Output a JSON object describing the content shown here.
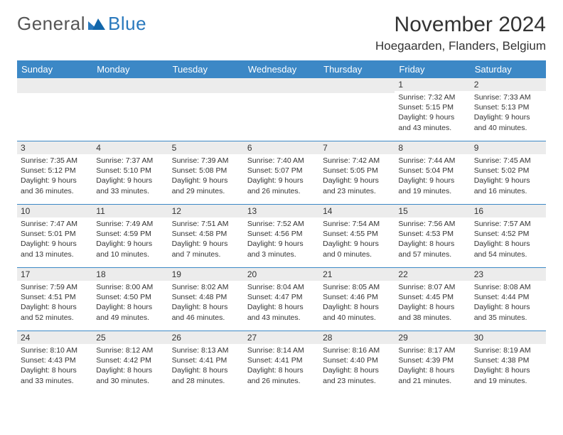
{
  "logo": {
    "word1": "General",
    "word2": "Blue"
  },
  "title": "November 2024",
  "location": "Hoegaarden, Flanders, Belgium",
  "dayHeaders": [
    "Sunday",
    "Monday",
    "Tuesday",
    "Wednesday",
    "Thursday",
    "Friday",
    "Saturday"
  ],
  "colors": {
    "header_bg": "#3c88c6",
    "header_text": "#ffffff",
    "daynum_bg": "#ececec",
    "border": "#3c88c6",
    "logo_gray": "#555555",
    "logo_blue": "#2a79bd",
    "text": "#333333"
  },
  "weeks": [
    [
      {
        "n": "",
        "sr": "",
        "ss": "",
        "dl": ""
      },
      {
        "n": "",
        "sr": "",
        "ss": "",
        "dl": ""
      },
      {
        "n": "",
        "sr": "",
        "ss": "",
        "dl": ""
      },
      {
        "n": "",
        "sr": "",
        "ss": "",
        "dl": ""
      },
      {
        "n": "",
        "sr": "",
        "ss": "",
        "dl": ""
      },
      {
        "n": "1",
        "sr": "Sunrise: 7:32 AM",
        "ss": "Sunset: 5:15 PM",
        "dl": "Daylight: 9 hours and 43 minutes."
      },
      {
        "n": "2",
        "sr": "Sunrise: 7:33 AM",
        "ss": "Sunset: 5:13 PM",
        "dl": "Daylight: 9 hours and 40 minutes."
      }
    ],
    [
      {
        "n": "3",
        "sr": "Sunrise: 7:35 AM",
        "ss": "Sunset: 5:12 PM",
        "dl": "Daylight: 9 hours and 36 minutes."
      },
      {
        "n": "4",
        "sr": "Sunrise: 7:37 AM",
        "ss": "Sunset: 5:10 PM",
        "dl": "Daylight: 9 hours and 33 minutes."
      },
      {
        "n": "5",
        "sr": "Sunrise: 7:39 AM",
        "ss": "Sunset: 5:08 PM",
        "dl": "Daylight: 9 hours and 29 minutes."
      },
      {
        "n": "6",
        "sr": "Sunrise: 7:40 AM",
        "ss": "Sunset: 5:07 PM",
        "dl": "Daylight: 9 hours and 26 minutes."
      },
      {
        "n": "7",
        "sr": "Sunrise: 7:42 AM",
        "ss": "Sunset: 5:05 PM",
        "dl": "Daylight: 9 hours and 23 minutes."
      },
      {
        "n": "8",
        "sr": "Sunrise: 7:44 AM",
        "ss": "Sunset: 5:04 PM",
        "dl": "Daylight: 9 hours and 19 minutes."
      },
      {
        "n": "9",
        "sr": "Sunrise: 7:45 AM",
        "ss": "Sunset: 5:02 PM",
        "dl": "Daylight: 9 hours and 16 minutes."
      }
    ],
    [
      {
        "n": "10",
        "sr": "Sunrise: 7:47 AM",
        "ss": "Sunset: 5:01 PM",
        "dl": "Daylight: 9 hours and 13 minutes."
      },
      {
        "n": "11",
        "sr": "Sunrise: 7:49 AM",
        "ss": "Sunset: 4:59 PM",
        "dl": "Daylight: 9 hours and 10 minutes."
      },
      {
        "n": "12",
        "sr": "Sunrise: 7:51 AM",
        "ss": "Sunset: 4:58 PM",
        "dl": "Daylight: 9 hours and 7 minutes."
      },
      {
        "n": "13",
        "sr": "Sunrise: 7:52 AM",
        "ss": "Sunset: 4:56 PM",
        "dl": "Daylight: 9 hours and 3 minutes."
      },
      {
        "n": "14",
        "sr": "Sunrise: 7:54 AM",
        "ss": "Sunset: 4:55 PM",
        "dl": "Daylight: 9 hours and 0 minutes."
      },
      {
        "n": "15",
        "sr": "Sunrise: 7:56 AM",
        "ss": "Sunset: 4:53 PM",
        "dl": "Daylight: 8 hours and 57 minutes."
      },
      {
        "n": "16",
        "sr": "Sunrise: 7:57 AM",
        "ss": "Sunset: 4:52 PM",
        "dl": "Daylight: 8 hours and 54 minutes."
      }
    ],
    [
      {
        "n": "17",
        "sr": "Sunrise: 7:59 AM",
        "ss": "Sunset: 4:51 PM",
        "dl": "Daylight: 8 hours and 52 minutes."
      },
      {
        "n": "18",
        "sr": "Sunrise: 8:00 AM",
        "ss": "Sunset: 4:50 PM",
        "dl": "Daylight: 8 hours and 49 minutes."
      },
      {
        "n": "19",
        "sr": "Sunrise: 8:02 AM",
        "ss": "Sunset: 4:48 PM",
        "dl": "Daylight: 8 hours and 46 minutes."
      },
      {
        "n": "20",
        "sr": "Sunrise: 8:04 AM",
        "ss": "Sunset: 4:47 PM",
        "dl": "Daylight: 8 hours and 43 minutes."
      },
      {
        "n": "21",
        "sr": "Sunrise: 8:05 AM",
        "ss": "Sunset: 4:46 PM",
        "dl": "Daylight: 8 hours and 40 minutes."
      },
      {
        "n": "22",
        "sr": "Sunrise: 8:07 AM",
        "ss": "Sunset: 4:45 PM",
        "dl": "Daylight: 8 hours and 38 minutes."
      },
      {
        "n": "23",
        "sr": "Sunrise: 8:08 AM",
        "ss": "Sunset: 4:44 PM",
        "dl": "Daylight: 8 hours and 35 minutes."
      }
    ],
    [
      {
        "n": "24",
        "sr": "Sunrise: 8:10 AM",
        "ss": "Sunset: 4:43 PM",
        "dl": "Daylight: 8 hours and 33 minutes."
      },
      {
        "n": "25",
        "sr": "Sunrise: 8:12 AM",
        "ss": "Sunset: 4:42 PM",
        "dl": "Daylight: 8 hours and 30 minutes."
      },
      {
        "n": "26",
        "sr": "Sunrise: 8:13 AM",
        "ss": "Sunset: 4:41 PM",
        "dl": "Daylight: 8 hours and 28 minutes."
      },
      {
        "n": "27",
        "sr": "Sunrise: 8:14 AM",
        "ss": "Sunset: 4:41 PM",
        "dl": "Daylight: 8 hours and 26 minutes."
      },
      {
        "n": "28",
        "sr": "Sunrise: 8:16 AM",
        "ss": "Sunset: 4:40 PM",
        "dl": "Daylight: 8 hours and 23 minutes."
      },
      {
        "n": "29",
        "sr": "Sunrise: 8:17 AM",
        "ss": "Sunset: 4:39 PM",
        "dl": "Daylight: 8 hours and 21 minutes."
      },
      {
        "n": "30",
        "sr": "Sunrise: 8:19 AM",
        "ss": "Sunset: 4:38 PM",
        "dl": "Daylight: 8 hours and 19 minutes."
      }
    ]
  ]
}
